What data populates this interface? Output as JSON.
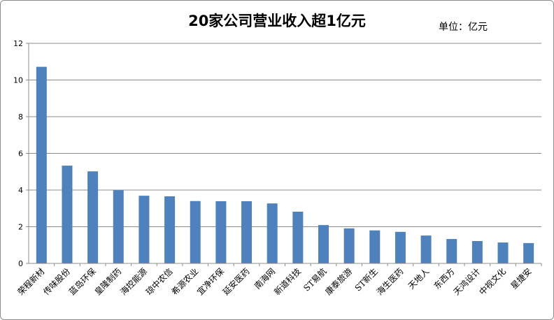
{
  "chart_data": {
    "type": "bar",
    "title": "20家公司营业收入超1亿元",
    "unit_label": "单位：亿元",
    "categories": [
      "荣程新材",
      "传味股份",
      "蓝岛环保",
      "皇隆制药",
      "海控能源",
      "琼中农信",
      "希源农业",
      "宜净环保",
      "延安医药",
      "南海网",
      "新道科技",
      "ST易航",
      "康泰旅游",
      "ST新生",
      "海生医药",
      "天地人",
      "东西方",
      "天鸿设计",
      "中视文化",
      "星捷安"
    ],
    "values": [
      10.72,
      5.33,
      5.02,
      3.99,
      3.69,
      3.66,
      3.4,
      3.39,
      3.39,
      3.27,
      2.82,
      2.09,
      1.91,
      1.8,
      1.72,
      1.52,
      1.33,
      1.22,
      1.14,
      1.11
    ],
    "ylim": [
      0,
      12
    ],
    "yticks": [
      0,
      2,
      4,
      6,
      8,
      10,
      12
    ],
    "grid": true,
    "bar_color": "#4f81bd",
    "grid_color": "#8c8c8c",
    "xlabel": "",
    "ylabel": ""
  }
}
